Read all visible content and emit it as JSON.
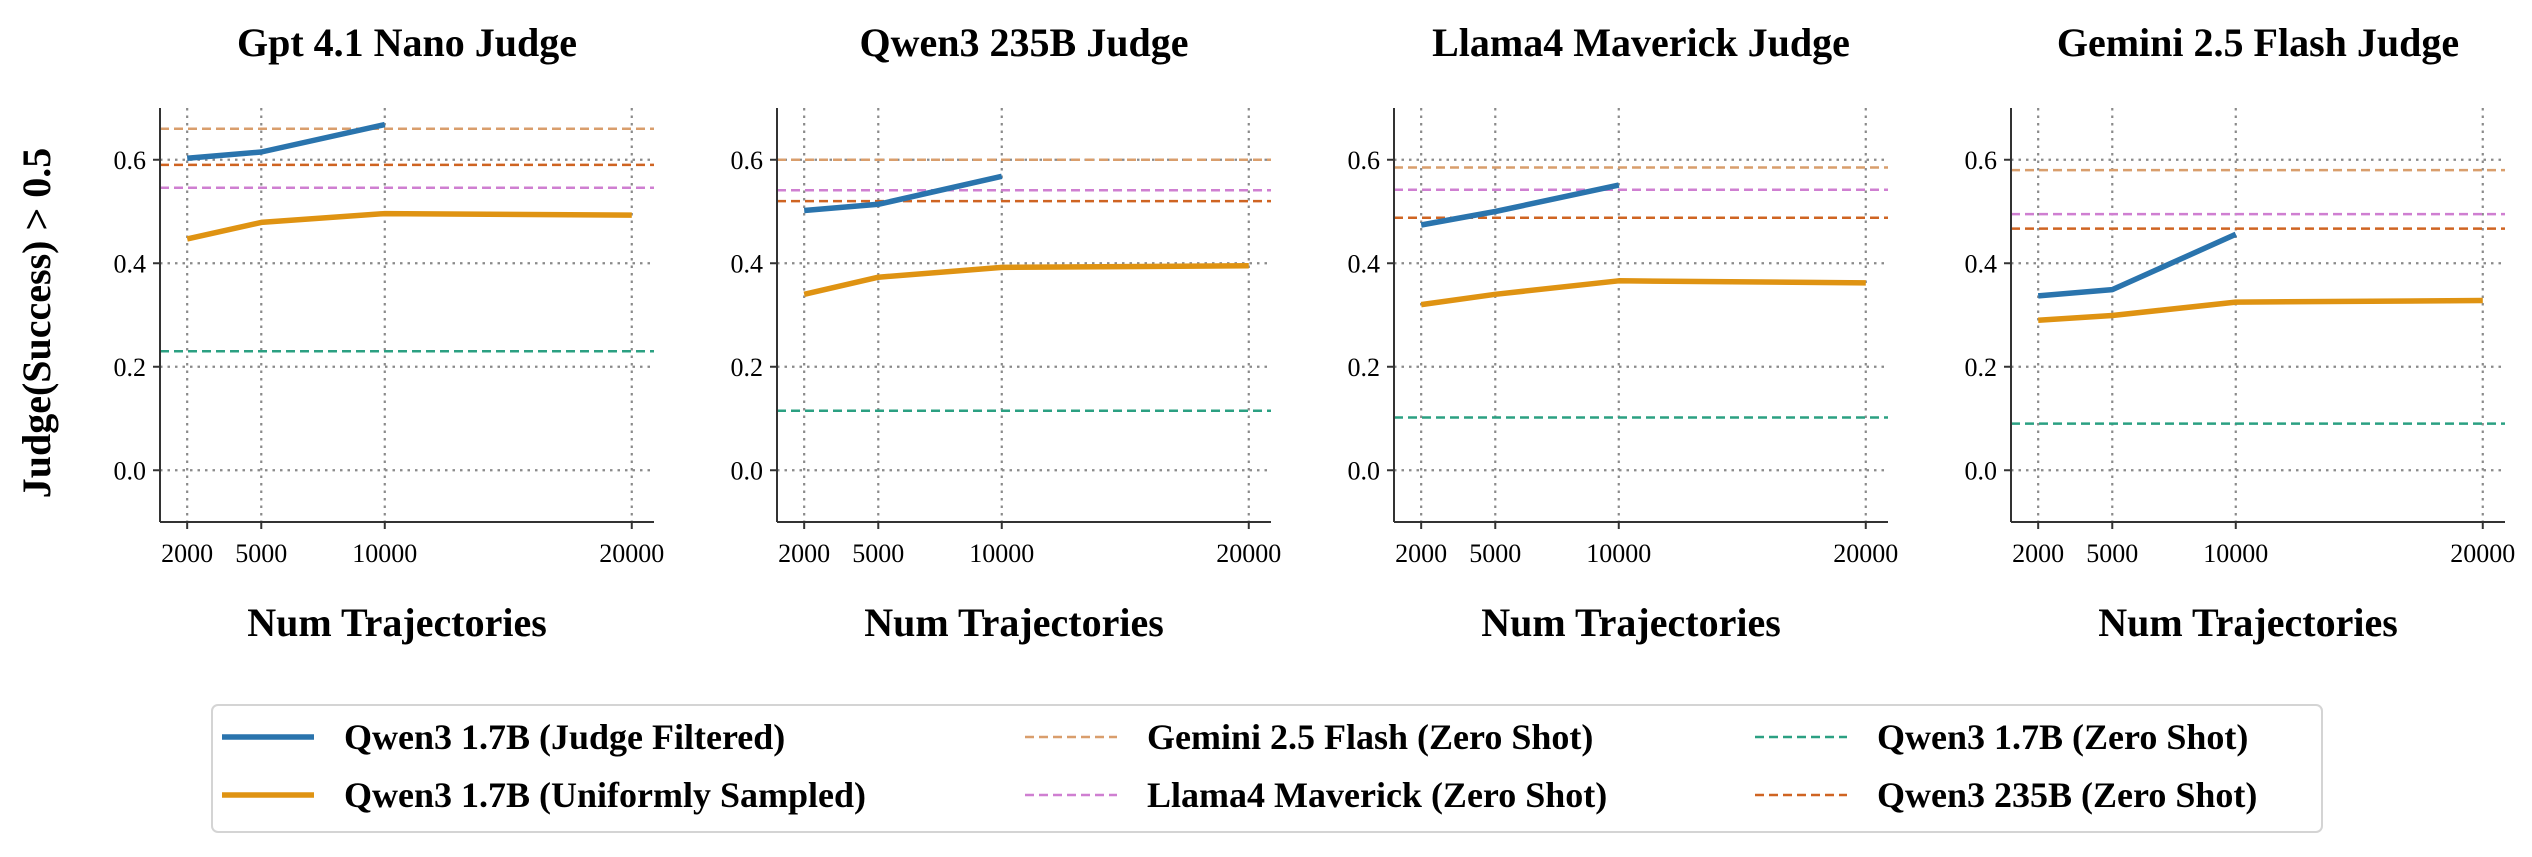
{
  "figure": {
    "ylabel": "Judge(Success) > 0.5",
    "colors": {
      "judge_filtered": "#2a74ad",
      "uniform": "#df9312",
      "gemini_zs": "#d99e6c",
      "llama_zs": "#cf7fd1",
      "qwen17_zs": "#2ba082",
      "qwen235_zs": "#cf6422"
    }
  },
  "legend": {
    "items": [
      {
        "key": "judge_filtered",
        "label": "Qwen3 1.7B (Judge Filtered)",
        "style": "solid"
      },
      {
        "key": "uniform",
        "label": "Qwen3 1.7B (Uniformly Sampled)",
        "style": "solid"
      },
      {
        "key": "gemini_zs",
        "label": "Gemini 2.5 Flash (Zero Shot)",
        "style": "dashed"
      },
      {
        "key": "llama_zs",
        "label": "Llama4 Maverick (Zero Shot)",
        "style": "dashed"
      },
      {
        "key": "qwen17_zs",
        "label": "Qwen3 1.7B (Zero Shot)",
        "style": "dashed"
      },
      {
        "key": "qwen235_zs",
        "label": "Qwen3 235B (Zero Shot)",
        "style": "dashed"
      }
    ]
  },
  "chart_data": [
    {
      "type": "line",
      "title": "Gpt 4.1 Nano Judge",
      "xlabel": "Num Trajectories",
      "ylabel": "Judge(Success) > 0.5",
      "xticks": [
        2000,
        5000,
        10000,
        20000
      ],
      "yticks": [
        0.0,
        0.2,
        0.4,
        0.6
      ],
      "xlim": [
        900,
        20900
      ],
      "ylim": [
        -0.1,
        0.7
      ],
      "grid": true,
      "series": [
        {
          "name": "Qwen3 1.7B (Judge Filtered)",
          "key": "judge_filtered",
          "x": [
            2000,
            5000,
            10000
          ],
          "y": [
            0.603,
            0.615,
            0.668
          ]
        },
        {
          "name": "Qwen3 1.7B (Uniformly Sampled)",
          "key": "uniform",
          "x": [
            2000,
            5000,
            10000,
            20000
          ],
          "y": [
            0.447,
            0.479,
            0.496,
            0.493
          ]
        }
      ],
      "hlines": [
        {
          "name": "Gemini 2.5 Flash (Zero Shot)",
          "key": "gemini_zs",
          "y": 0.66
        },
        {
          "name": "Qwen3 235B (Zero Shot)",
          "key": "qwen235_zs",
          "y": 0.59
        },
        {
          "name": "Llama4 Maverick (Zero Shot)",
          "key": "llama_zs",
          "y": 0.546
        },
        {
          "name": "Qwen3 1.7B (Zero Shot)",
          "key": "qwen17_zs",
          "y": 0.23
        }
      ]
    },
    {
      "type": "line",
      "title": "Qwen3 235B Judge",
      "xlabel": "Num Trajectories",
      "ylabel": "",
      "xticks": [
        2000,
        5000,
        10000,
        20000
      ],
      "yticks": [
        0.0,
        0.2,
        0.4,
        0.6
      ],
      "xlim": [
        900,
        20900
      ],
      "ylim": [
        -0.1,
        0.7
      ],
      "grid": true,
      "series": [
        {
          "name": "Qwen3 1.7B (Judge Filtered)",
          "key": "judge_filtered",
          "x": [
            2000,
            5000,
            10000
          ],
          "y": [
            0.502,
            0.514,
            0.568
          ]
        },
        {
          "name": "Qwen3 1.7B (Uniformly Sampled)",
          "key": "uniform",
          "x": [
            2000,
            5000,
            10000,
            20000
          ],
          "y": [
            0.34,
            0.373,
            0.392,
            0.395
          ]
        }
      ],
      "hlines": [
        {
          "name": "Gemini 2.5 Flash (Zero Shot)",
          "key": "gemini_zs",
          "y": 0.6
        },
        {
          "name": "Llama4 Maverick (Zero Shot)",
          "key": "llama_zs",
          "y": 0.541
        },
        {
          "name": "Qwen3 235B (Zero Shot)",
          "key": "qwen235_zs",
          "y": 0.52
        },
        {
          "name": "Qwen3 1.7B (Zero Shot)",
          "key": "qwen17_zs",
          "y": 0.115
        }
      ]
    },
    {
      "type": "line",
      "title": "Llama4 Maverick Judge",
      "xlabel": "Num Trajectories",
      "ylabel": "",
      "xticks": [
        2000,
        5000,
        10000,
        20000
      ],
      "yticks": [
        0.0,
        0.2,
        0.4,
        0.6
      ],
      "xlim": [
        900,
        20900
      ],
      "ylim": [
        -0.1,
        0.7
      ],
      "grid": true,
      "series": [
        {
          "name": "Qwen3 1.7B (Judge Filtered)",
          "key": "judge_filtered",
          "x": [
            2000,
            5000,
            10000
          ],
          "y": [
            0.474,
            0.5,
            0.551
          ]
        },
        {
          "name": "Qwen3 1.7B (Uniformly Sampled)",
          "key": "uniform",
          "x": [
            2000,
            5000,
            10000,
            20000
          ],
          "y": [
            0.32,
            0.34,
            0.366,
            0.362
          ]
        }
      ],
      "hlines": [
        {
          "name": "Gemini 2.5 Flash (Zero Shot)",
          "key": "gemini_zs",
          "y": 0.585
        },
        {
          "name": "Llama4 Maverick (Zero Shot)",
          "key": "llama_zs",
          "y": 0.542
        },
        {
          "name": "Qwen3 235B (Zero Shot)",
          "key": "qwen235_zs",
          "y": 0.488
        },
        {
          "name": "Qwen3 1.7B (Zero Shot)",
          "key": "qwen17_zs",
          "y": 0.102
        }
      ]
    },
    {
      "type": "line",
      "title": "Gemini 2.5 Flash Judge",
      "xlabel": "Num Trajectories",
      "ylabel": "",
      "xticks": [
        2000,
        5000,
        10000,
        20000
      ],
      "yticks": [
        0.0,
        0.2,
        0.4,
        0.6
      ],
      "xlim": [
        900,
        20900
      ],
      "ylim": [
        -0.1,
        0.7
      ],
      "grid": true,
      "series": [
        {
          "name": "Qwen3 1.7B (Judge Filtered)",
          "key": "judge_filtered",
          "x": [
            2000,
            5000,
            10000
          ],
          "y": [
            0.337,
            0.349,
            0.456
          ]
        },
        {
          "name": "Qwen3 1.7B (Uniformly Sampled)",
          "key": "uniform",
          "x": [
            2000,
            5000,
            10000,
            20000
          ],
          "y": [
            0.29,
            0.299,
            0.325,
            0.328
          ]
        }
      ],
      "hlines": [
        {
          "name": "Gemini 2.5 Flash (Zero Shot)",
          "key": "gemini_zs",
          "y": 0.58
        },
        {
          "name": "Llama4 Maverick (Zero Shot)",
          "key": "llama_zs",
          "y": 0.495
        },
        {
          "name": "Qwen3 235B (Zero Shot)",
          "key": "qwen235_zs",
          "y": 0.467
        },
        {
          "name": "Qwen3 1.7B (Zero Shot)",
          "key": "qwen17_zs",
          "y": 0.09
        }
      ]
    }
  ]
}
